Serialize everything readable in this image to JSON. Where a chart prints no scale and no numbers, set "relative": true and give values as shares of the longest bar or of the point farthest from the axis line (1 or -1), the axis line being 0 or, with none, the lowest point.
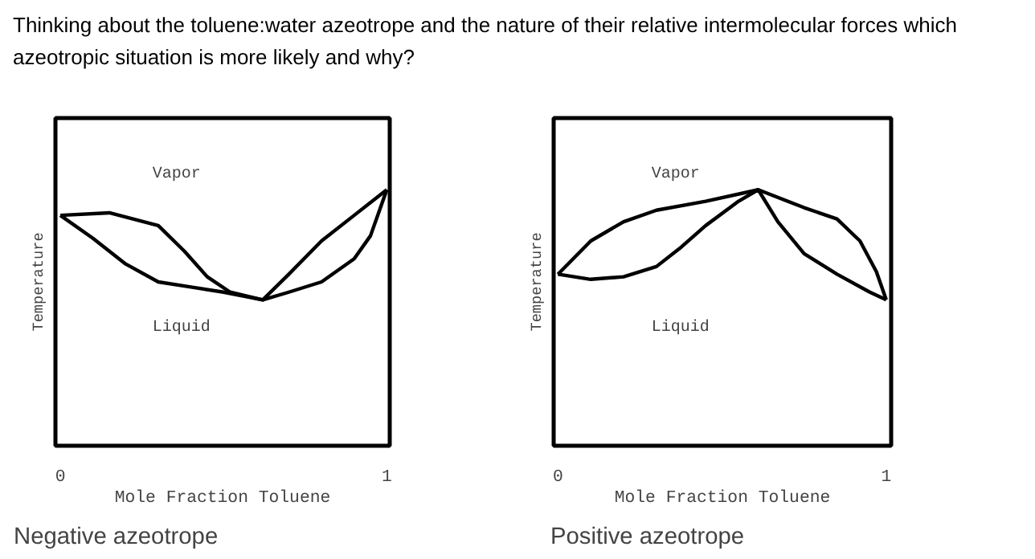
{
  "chart_data": [
    {
      "type": "line",
      "title": "Thinking about the toluene:water azeotrope and the nature of their relative intermolecular forces which azeotropic situation is more likely and why?",
      "xlabel": "Mole Fraction Toluene",
      "ylabel": "Temperature",
      "relative": true,
      "xlim": [
        -0.015,
        1.009
      ],
      "xticks": [
        0,
        1
      ],
      "line_style": "solid",
      "marker": "none",
      "series": [
        {
          "color": "#000000",
          "x": [
            0,
            0.15,
            0.3,
            0.38,
            0.45,
            0.52,
            0.62,
            0.7,
            0.8,
            0.9,
            1
          ],
          "values": [
            0.9,
            0.91,
            0.86,
            0.76,
            0.66,
            0.6,
            0.57,
            0.67,
            0.8,
            0.9,
            1
          ]
        },
        {
          "color": "#000000",
          "x": [
            0,
            0.1,
            0.2,
            0.3,
            0.4,
            0.5,
            0.62,
            0.7,
            0.8,
            0.9,
            0.95,
            1
          ],
          "values": [
            0.9,
            0.81,
            0.71,
            0.64,
            0.62,
            0.6,
            0.57,
            0.6,
            0.64,
            0.73,
            0.82,
            1
          ]
        }
      ],
      "annotations": [
        "Vapor",
        "Liquid",
        "Negative azeotrope"
      ]
    },
    {
      "type": "line",
      "xlabel": "Mole Fraction Toluene",
      "ylabel": "Temperature",
      "relative": true,
      "xlim": [
        -0.013,
        1.015
      ],
      "xticks": [
        0,
        1
      ],
      "line_style": "solid",
      "marker": "none",
      "series": [
        {
          "color": "#000000",
          "x": [
            0,
            0.1,
            0.2,
            0.3,
            0.45,
            0.61,
            0.75,
            0.85,
            0.92,
            0.97,
            1
          ],
          "values": [
            0.67,
            0.8,
            0.875,
            0.92,
            0.955,
            1,
            0.93,
            0.886,
            0.8,
            0.68,
            0.57
          ]
        },
        {
          "color": "#000000",
          "x": [
            0,
            0.1,
            0.2,
            0.3,
            0.37,
            0.45,
            0.55,
            0.61,
            0.67,
            0.75,
            0.85,
            0.95,
            1
          ],
          "values": [
            0.67,
            0.65,
            0.66,
            0.7,
            0.77,
            0.86,
            0.955,
            1,
            0.875,
            0.75,
            0.67,
            0.6,
            0.57
          ]
        }
      ],
      "annotations": [
        "Vapor",
        "Liquid",
        "Positive azeotrope"
      ]
    }
  ]
}
